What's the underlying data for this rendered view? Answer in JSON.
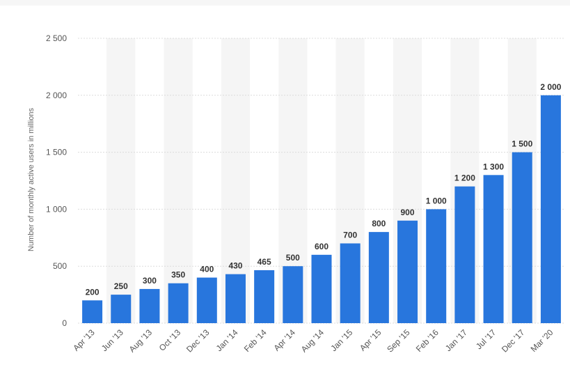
{
  "chart_data": {
    "type": "bar",
    "title": "",
    "xlabel": "",
    "ylabel": "Number of monthly active users in millions",
    "ylim": [
      0,
      2500
    ],
    "yticks": [
      0,
      500,
      1000,
      1500,
      2000,
      2500
    ],
    "ytick_labels": [
      "0",
      "500",
      "1 000",
      "1 500",
      "2 000",
      "2 500"
    ],
    "grid": true,
    "categories": [
      "Apr '13",
      "Jun '13",
      "Aug '13",
      "Oct '13",
      "Dec '13",
      "Jan '14",
      "Feb '14",
      "Apr '14",
      "Aug '14",
      "Jan '15",
      "Apr '15",
      "Sep '15",
      "Feb '16",
      "Jan '17",
      "Jul '17",
      "Dec '17",
      "Mar '20"
    ],
    "values": [
      200,
      250,
      300,
      350,
      400,
      430,
      465,
      500,
      600,
      700,
      800,
      900,
      1000,
      1200,
      1300,
      1500,
      2000
    ],
    "value_labels": [
      "200",
      "250",
      "300",
      "350",
      "400",
      "430",
      "465",
      "500",
      "600",
      "700",
      "800",
      "900",
      "1 000",
      "1 200",
      "1 300",
      "1 500",
      "2 000"
    ],
    "bar_color": "#2876dd",
    "band_color": "#f5f5f5",
    "grid_color": "#dcdcdc"
  }
}
